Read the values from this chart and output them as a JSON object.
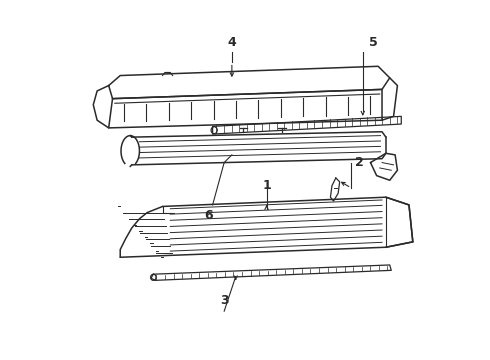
{
  "background_color": "#ffffff",
  "line_color": "#2a2a2a",
  "line_width": 1.1,
  "fig_width": 4.9,
  "fig_height": 3.6,
  "dpi": 100,
  "label_fontsize": 9,
  "label_fontweight": "bold"
}
